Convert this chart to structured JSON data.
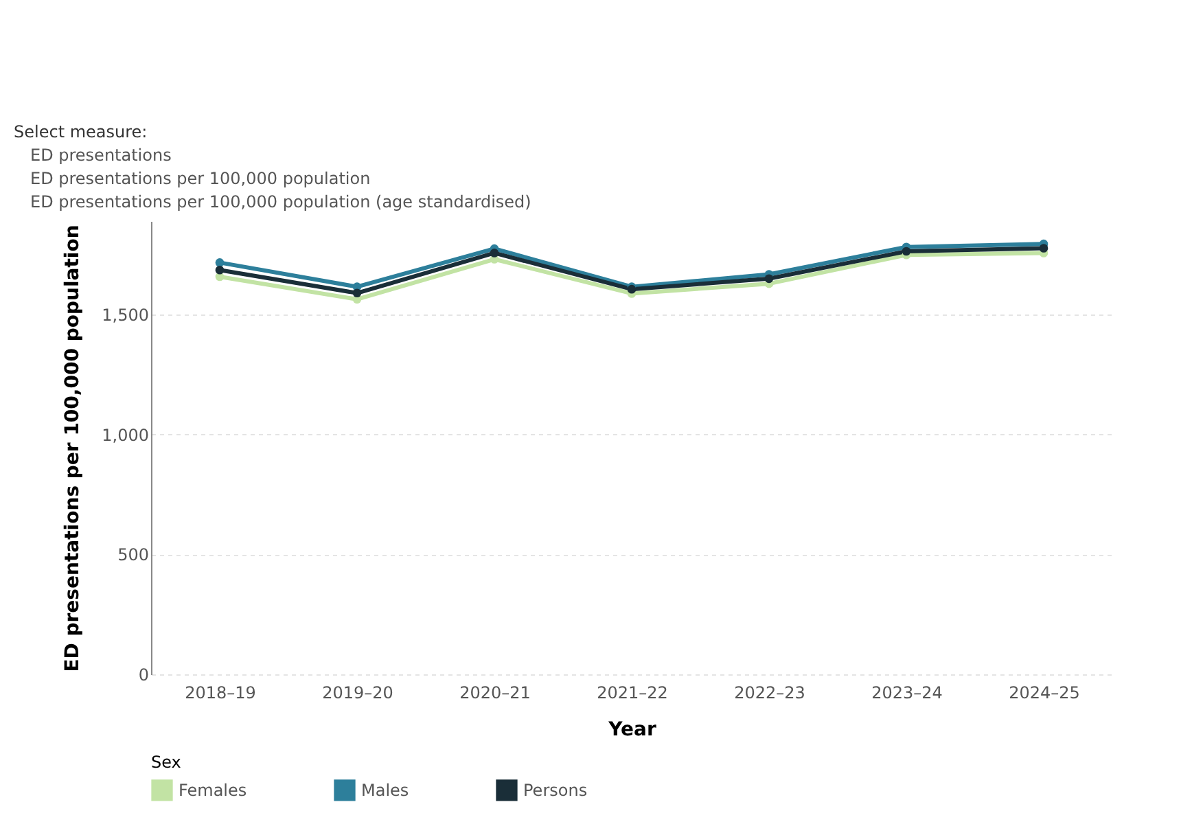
{
  "chart_data": {
    "type": "line",
    "xlabel": "Year",
    "ylabel": "ED presentations per 100,000 population",
    "legend_title": "Sex",
    "categories": [
      "2018–19",
      "2019–20",
      "2020–21",
      "2021–22",
      "2022–23",
      "2023–24",
      "2024–25"
    ],
    "series": [
      {
        "name": "Females",
        "color": "#c2e3a4",
        "values": [
          1658,
          1564,
          1731,
          1588,
          1629,
          1749,
          1757
        ]
      },
      {
        "name": "Males",
        "color": "#2d7f9b",
        "values": [
          1717,
          1616,
          1775,
          1616,
          1668,
          1782,
          1795
        ]
      },
      {
        "name": "Persons",
        "color": "#1a2e38",
        "values": [
          1686,
          1590,
          1757,
          1606,
          1650,
          1764,
          1777
        ]
      }
    ],
    "ylim": [
      0,
      1890
    ],
    "yticks": [
      0,
      500,
      {
        "value": 1000,
        "label": "1,000"
      },
      {
        "value": 1500,
        "label": "1,500"
      }
    ],
    "grid": "y",
    "legend": "bottom",
    "marker": "circle",
    "line_style": "solid",
    "annotations": [
      "Select measure:",
      "ED presentations",
      "ED presentations per 100,000 population",
      "ED presentations per 100,000 population (age standardised)"
    ]
  }
}
